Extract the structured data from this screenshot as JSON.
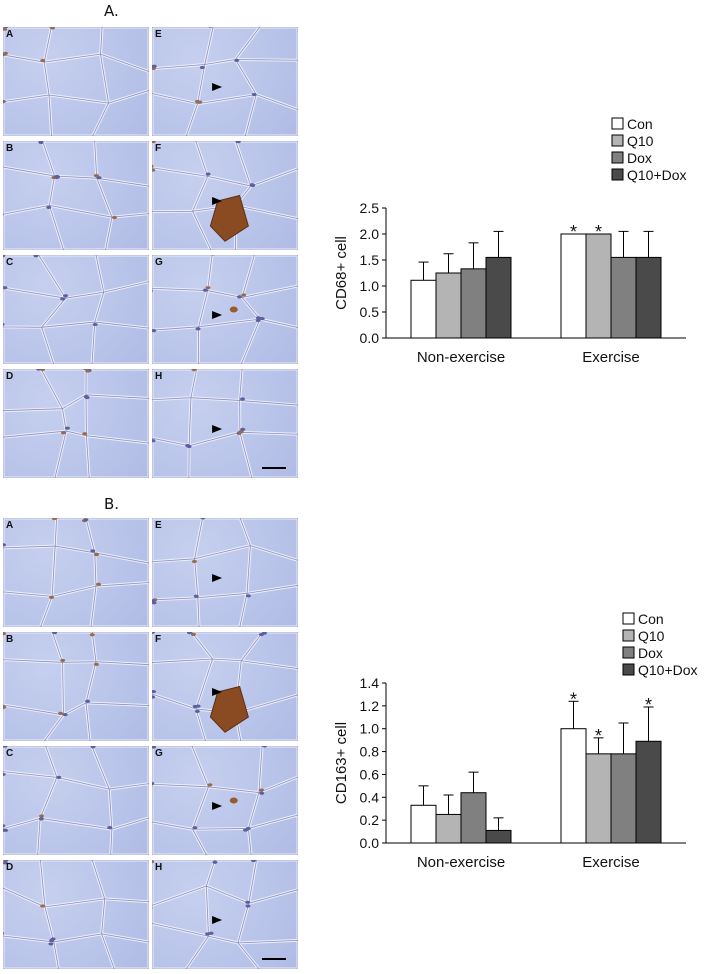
{
  "panels": [
    {
      "title": "A.",
      "micrographs": [
        {
          "label": "A",
          "arrow": false,
          "blob": null
        },
        {
          "label": "E",
          "arrow": true,
          "blob": null
        },
        {
          "label": "B",
          "arrow": false,
          "blob": null
        },
        {
          "label": "F",
          "arrow": true,
          "blob": "large"
        },
        {
          "label": "C",
          "arrow": false,
          "blob": null
        },
        {
          "label": "G",
          "arrow": true,
          "blob": "small"
        },
        {
          "label": "D",
          "arrow": false,
          "blob": null
        },
        {
          "label": "H",
          "arrow": true,
          "blob": null
        }
      ]
    },
    {
      "title": "B.",
      "micrographs": [
        {
          "label": "A",
          "arrow": false,
          "blob": null
        },
        {
          "label": "E",
          "arrow": true,
          "blob": null
        },
        {
          "label": "B",
          "arrow": false,
          "blob": null
        },
        {
          "label": "F",
          "arrow": true,
          "blob": "large"
        },
        {
          "label": "C",
          "arrow": false,
          "blob": null
        },
        {
          "label": "G",
          "arrow": true,
          "blob": "small"
        },
        {
          "label": "D",
          "arrow": false,
          "blob": null
        },
        {
          "label": "H",
          "arrow": true,
          "blob": null
        }
      ]
    }
  ],
  "chart_data": [
    {
      "type": "bar",
      "categories": [
        "Non-exercise",
        "Exercise"
      ],
      "ylabel": "CD68+ cell",
      "ylim": [
        0,
        2.5
      ],
      "yticks": [
        "0.0",
        "0.5",
        "1.0",
        "1.5",
        "2.0",
        "2.5"
      ],
      "legend_position": "top-right",
      "series": [
        {
          "name": "Con",
          "color": "#ffffff",
          "values": [
            1.11,
            2.0
          ],
          "errors": [
            0.35,
            0.0
          ],
          "significant": [
            false,
            true
          ]
        },
        {
          "name": "Q10",
          "color": "#b4b4b4",
          "values": [
            1.25,
            2.0
          ],
          "errors": [
            0.37,
            0.0
          ],
          "significant": [
            false,
            true
          ]
        },
        {
          "name": "Dox",
          "color": "#808080",
          "values": [
            1.33,
            1.55
          ],
          "errors": [
            0.5,
            0.5
          ],
          "significant": [
            false,
            false
          ]
        },
        {
          "name": "Q10+Dox",
          "color": "#4a4a4a",
          "values": [
            1.55,
            1.55
          ],
          "errors": [
            0.5,
            0.5
          ],
          "significant": [
            false,
            false
          ]
        }
      ],
      "significance_marker": "*"
    },
    {
      "type": "bar",
      "categories": [
        "Non-exercise",
        "Exercise"
      ],
      "ylabel": "CD163+ cell",
      "ylim": [
        0,
        1.4
      ],
      "yticks": [
        "0.0",
        "0.2",
        "0.4",
        "0.6",
        "0.8",
        "1.0",
        "1.2",
        "1.4"
      ],
      "legend_position": "top-right",
      "series": [
        {
          "name": "Con",
          "color": "#ffffff",
          "values": [
            0.33,
            1.0
          ],
          "errors": [
            0.17,
            0.24
          ],
          "significant": [
            false,
            true
          ]
        },
        {
          "name": "Q10",
          "color": "#b4b4b4",
          "values": [
            0.25,
            0.78
          ],
          "errors": [
            0.17,
            0.14
          ],
          "significant": [
            false,
            true
          ]
        },
        {
          "name": "Dox",
          "color": "#808080",
          "values": [
            0.44,
            0.78
          ],
          "errors": [
            0.18,
            0.27
          ],
          "significant": [
            false,
            false
          ]
        },
        {
          "name": "Q10+Dox",
          "color": "#4a4a4a",
          "values": [
            0.11,
            0.89
          ],
          "errors": [
            0.11,
            0.3
          ],
          "significant": [
            false,
            true
          ]
        }
      ],
      "significance_marker": "*"
    }
  ]
}
